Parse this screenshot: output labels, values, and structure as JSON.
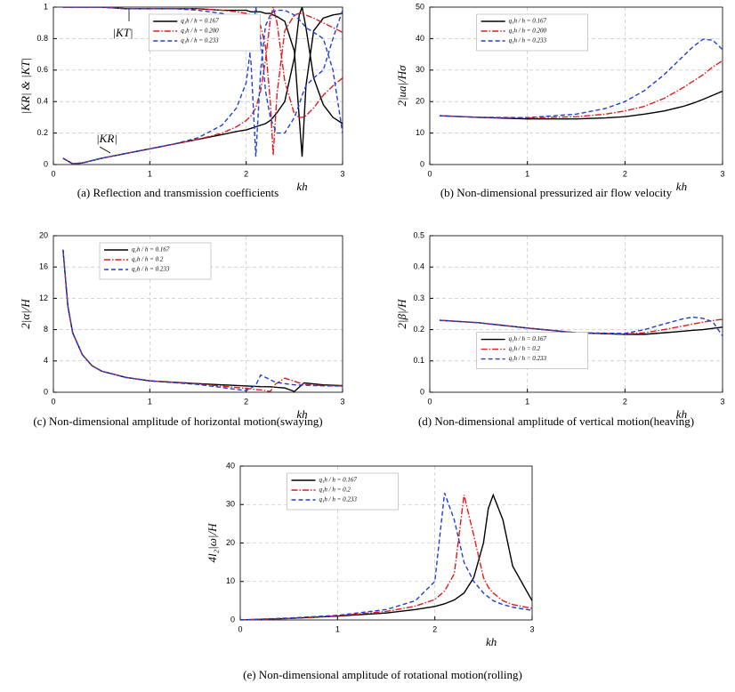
{
  "chart_data": [
    {
      "type": "line",
      "caption": "(a) Reflection and transmission coefficients",
      "xlabel": "kh",
      "ylabel": "|KR| & |KT|",
      "annotations": [
        "|KT|",
        "|KR|"
      ],
      "legend": "upper center",
      "grid": true,
      "xlim": [
        0,
        3
      ],
      "xticks": [
        0,
        1,
        2,
        3
      ],
      "ylim": [
        0,
        1
      ],
      "yticks": [
        0,
        0.2,
        0.4,
        0.6,
        0.8,
        1
      ],
      "x": [
        0.1,
        0.2,
        0.3,
        0.5,
        0.75,
        1,
        1.25,
        1.5,
        1.75,
        1.9,
        2.0,
        2.05,
        2.1,
        2.15,
        2.2,
        2.25,
        2.28,
        2.32,
        2.4,
        2.5,
        2.55,
        2.58,
        2.62,
        2.7,
        2.8,
        2.9,
        3.0
      ],
      "series": [
        {
          "name": "q₁h / h = 0.167",
          "color": "#000000",
          "style": "solid",
          "values": [
            1,
            1,
            1,
            1,
            0.99,
            0.99,
            0.99,
            0.99,
            0.98,
            0.98,
            0.98,
            0.97,
            0.97,
            0.97,
            0.96,
            0.96,
            0.95,
            0.94,
            0.91,
            0.72,
            0.3,
            0.05,
            0.5,
            0.85,
            0.93,
            0.95,
            0.96
          ],
          "reflection": [
            0.04,
            0.005,
            0.01,
            0.04,
            0.07,
            0.1,
            0.13,
            0.16,
            0.19,
            0.21,
            0.22,
            0.23,
            0.24,
            0.25,
            0.26,
            0.28,
            0.3,
            0.33,
            0.4,
            0.68,
            0.95,
            1.0,
            0.87,
            0.55,
            0.38,
            0.3,
            0.26
          ]
        },
        {
          "name": "q₁h / h = 0.200",
          "color": "#e41a1c",
          "style": "dashdot",
          "values": [
            1,
            1,
            1,
            1,
            0.99,
            0.99,
            0.99,
            0.99,
            0.98,
            0.97,
            0.96,
            0.95,
            0.93,
            0.88,
            0.75,
            0.4,
            0.06,
            0.45,
            0.85,
            0.95,
            0.96,
            0.96,
            0.95,
            0.93,
            0.9,
            0.87,
            0.84
          ],
          "reflection": [
            0.04,
            0.005,
            0.01,
            0.04,
            0.07,
            0.1,
            0.13,
            0.16,
            0.2,
            0.24,
            0.28,
            0.31,
            0.36,
            0.47,
            0.66,
            0.92,
            1.0,
            0.9,
            0.53,
            0.32,
            0.3,
            0.3,
            0.31,
            0.36,
            0.44,
            0.5,
            0.55
          ]
        },
        {
          "name": "q₁h / h = 0.233",
          "color": "#1f3fd6",
          "style": "dashed",
          "values": [
            1,
            1,
            1,
            1,
            0.99,
            0.99,
            0.99,
            0.98,
            0.96,
            0.93,
            0.85,
            0.65,
            0.05,
            0.6,
            0.88,
            0.95,
            0.97,
            0.98,
            0.98,
            0.95,
            0.92,
            0.9,
            0.87,
            0.84,
            0.8,
            0.6,
            0.2
          ],
          "reflection": [
            0.04,
            0.005,
            0.01,
            0.04,
            0.07,
            0.1,
            0.13,
            0.17,
            0.25,
            0.36,
            0.52,
            0.76,
            1.0,
            0.8,
            0.47,
            0.3,
            0.25,
            0.2,
            0.2,
            0.3,
            0.38,
            0.44,
            0.5,
            0.55,
            0.6,
            0.8,
            0.98
          ]
        }
      ]
    },
    {
      "type": "line",
      "caption": "(b) Non-dimensional pressurized air flow velocity",
      "xlabel": "kh",
      "ylabel": "2|ua|/Hσ",
      "legend": "upper left",
      "grid": true,
      "xlim": [
        0,
        3
      ],
      "xticks": [
        0,
        1,
        2,
        3
      ],
      "ylim": [
        0,
        50
      ],
      "yticks": [
        0,
        10,
        20,
        30,
        40,
        50
      ],
      "x": [
        0.1,
        0.5,
        1,
        1.5,
        1.8,
        2,
        2.2,
        2.4,
        2.6,
        2.7,
        2.8,
        2.9,
        3.0
      ],
      "series": [
        {
          "name": "q₁h / h = 0.167",
          "color": "#000000",
          "style": "solid",
          "values": [
            15.5,
            15,
            14.5,
            14.5,
            14.8,
            15.2,
            16,
            17,
            18.5,
            19.5,
            20.7,
            22,
            23.3
          ]
        },
        {
          "name": "q₁h / h = 0.200",
          "color": "#e41a1c",
          "style": "dashdot",
          "values": [
            15.5,
            15,
            14.8,
            15.2,
            16,
            17,
            18.5,
            21,
            24.5,
            26.5,
            28.5,
            31,
            33
          ]
        },
        {
          "name": "q₁h / h = 0.233",
          "color": "#1f3fd6",
          "style": "dashed",
          "values": [
            15.5,
            15,
            14.9,
            16,
            17.8,
            20,
            23.5,
            28.5,
            34.5,
            37.5,
            39.8,
            39.5,
            36.5
          ]
        }
      ]
    },
    {
      "type": "line",
      "caption": "(c) Non-dimensional amplitude of horizontal motion(swaying)",
      "xlabel": "kh",
      "ylabel": "2|α|/H",
      "legend": "upper left",
      "grid": true,
      "xlim": [
        0,
        3
      ],
      "xticks": [
        0,
        1,
        2,
        3
      ],
      "ylim": [
        0,
        20
      ],
      "yticks": [
        0,
        4,
        8,
        12,
        16,
        20
      ],
      "x": [
        0.1,
        0.15,
        0.2,
        0.3,
        0.4,
        0.5,
        0.75,
        1,
        1.5,
        2,
        2.1,
        2.15,
        2.25,
        2.3,
        2.4,
        2.5,
        2.6,
        2.8,
        3
      ],
      "series": [
        {
          "name": "q₁h / h = 0.167",
          "color": "#000000",
          "style": "solid",
          "values": [
            18.2,
            11,
            7.6,
            4.8,
            3.4,
            2.7,
            1.9,
            1.45,
            1.1,
            0.8,
            0.75,
            0.72,
            0.7,
            0.65,
            0.55,
            0.1,
            1.2,
            0.95,
            0.85
          ]
        },
        {
          "name": "q₁h / h = 0.2",
          "color": "#e41a1c",
          "style": "dashdot",
          "values": [
            18.2,
            11,
            7.6,
            4.8,
            3.4,
            2.7,
            1.9,
            1.45,
            1.05,
            0.5,
            0.35,
            0.3,
            0.1,
            1.0,
            1.8,
            1.4,
            1.0,
            0.85,
            0.8
          ]
        },
        {
          "name": "q₁h / h = 0.233",
          "color": "#1f3fd6",
          "style": "dashed",
          "values": [
            18.2,
            11,
            7.6,
            4.8,
            3.4,
            2.7,
            1.9,
            1.45,
            1.0,
            0.2,
            0.9,
            2.2,
            1.6,
            1.3,
            1.1,
            0.95,
            0.9,
            0.82,
            0.78
          ]
        }
      ]
    },
    {
      "type": "line",
      "caption": "(d) Non-dimensional amplitude of vertical motion(heaving)",
      "xlabel": "kh",
      "ylabel": "2|β|/H",
      "legend": "lower left",
      "grid": true,
      "xlim": [
        0,
        3
      ],
      "xticks": [
        0,
        1,
        2,
        3
      ],
      "ylim": [
        0,
        0.5
      ],
      "yticks": [
        0,
        0.1,
        0.2,
        0.3,
        0.4,
        0.5
      ],
      "x": [
        0.1,
        0.5,
        1,
        1.5,
        2,
        2.2,
        2.4,
        2.6,
        2.7,
        2.8,
        2.9,
        3
      ],
      "series": [
        {
          "name": "q₁h / h = 0.167",
          "color": "#000000",
          "style": "solid",
          "values": [
            0.23,
            0.222,
            0.205,
            0.19,
            0.185,
            0.185,
            0.19,
            0.195,
            0.198,
            0.2,
            0.204,
            0.208
          ]
        },
        {
          "name": "q₁h / h = 0.2",
          "color": "#e41a1c",
          "style": "dashdot",
          "values": [
            0.23,
            0.222,
            0.205,
            0.19,
            0.186,
            0.19,
            0.2,
            0.212,
            0.218,
            0.224,
            0.229,
            0.233
          ]
        },
        {
          "name": "q₁h / h = 0.233",
          "color": "#1f3fd6",
          "style": "dashed",
          "values": [
            0.23,
            0.222,
            0.205,
            0.19,
            0.188,
            0.2,
            0.218,
            0.235,
            0.24,
            0.236,
            0.225,
            0.18
          ]
        }
      ]
    },
    {
      "type": "line",
      "caption": "(e) Non-dimensional amplitude of rotational motion(rolling)",
      "xlabel": "kh",
      "ylabel": "4l₂|ω|/H",
      "legend": "upper left",
      "grid": true,
      "xlim": [
        0,
        3
      ],
      "xticks": [
        0,
        1,
        2,
        3
      ],
      "ylim": [
        0,
        40
      ],
      "yticks": [
        0,
        10,
        20,
        30,
        40
      ],
      "x": [
        0,
        0.5,
        1,
        1.5,
        1.8,
        2,
        2.1,
        2.2,
        2.3,
        2.4,
        2.5,
        2.55,
        2.6,
        2.7,
        2.8,
        3
      ],
      "series": [
        {
          "name": "q₁h / h = 0.167",
          "color": "#000000",
          "style": "solid",
          "values": [
            0,
            0.4,
            1,
            1.8,
            2.7,
            3.5,
            4.2,
            5.2,
            7,
            11,
            20,
            29,
            32.5,
            26,
            14,
            5
          ]
        },
        {
          "name": "q₁h / h = 0.2",
          "color": "#e41a1c",
          "style": "dashdot",
          "values": [
            0,
            0.4,
            1.1,
            2.2,
            3.6,
            5.3,
            7.5,
            12,
            32.5,
            22,
            11,
            8.5,
            7,
            5,
            4,
            3
          ]
        },
        {
          "name": "q₁h / h = 0.233",
          "color": "#1f3fd6",
          "style": "dashed",
          "values": [
            0,
            0.5,
            1.2,
            2.7,
            5,
            10,
            33,
            26,
            15,
            10,
            7,
            6,
            5,
            4,
            3.3,
            2.5
          ]
        }
      ]
    }
  ]
}
